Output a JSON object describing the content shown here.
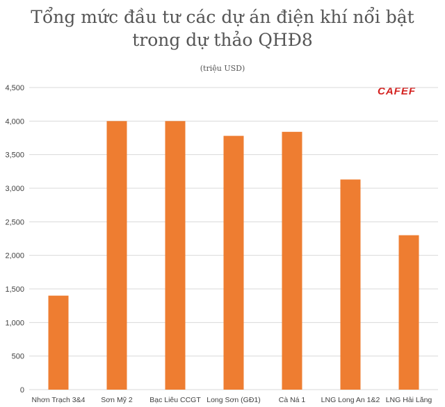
{
  "title_lines": [
    "Tổng mức đầu tư các dự án điện khí nổi bật",
    "trong dự thảo QHĐ8"
  ],
  "subtitle": "(triệu USD)",
  "logo": {
    "text": "CAFEF",
    "color": "#d4201e"
  },
  "colors": {
    "bar": "#ee7d31",
    "grid": "#d9d9d9",
    "axis_text": "#404040"
  },
  "chart_data": {
    "type": "bar",
    "title": "Tổng mức đầu tư các dự án điện khí nổi bật trong dự thảo QHĐ8",
    "subtitle": "(triệu USD)",
    "categories": [
      "Nhơn Trạch 3&4",
      "Sơn Mỹ 2",
      "Bạc Liêu CCGT",
      "Long Sơn (GĐ1)",
      "Cà Ná 1",
      "LNG Long An 1&2",
      "LNG Hải Lăng"
    ],
    "values": [
      1400,
      4000,
      4000,
      3780,
      3840,
      3130,
      2300
    ],
    "ylim": [
      0,
      4500
    ],
    "yticks": [
      0,
      500,
      1000,
      1500,
      2000,
      2500,
      3000,
      3500,
      4000,
      4500
    ],
    "ytick_labels": [
      "0",
      "500",
      "1,000",
      "1,500",
      "2,000",
      "2,500",
      "3,000",
      "3,500",
      "4,000",
      "4,500"
    ],
    "xlabel": "",
    "ylabel": "",
    "grid": true,
    "legend": "none"
  }
}
